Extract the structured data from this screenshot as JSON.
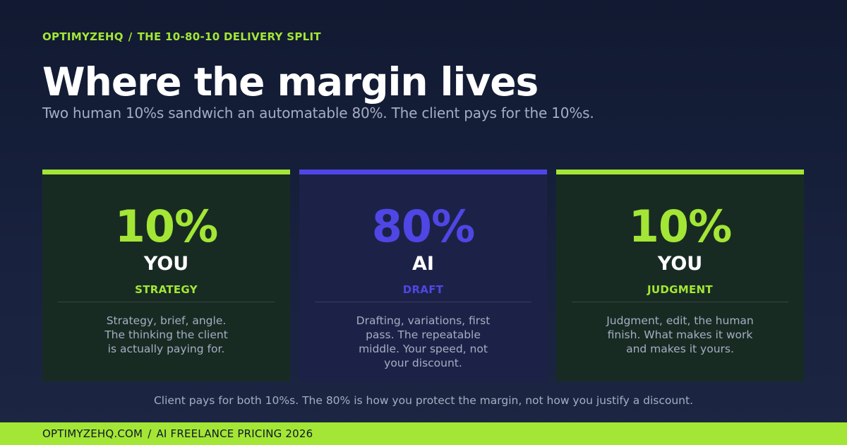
{
  "header": {
    "brand": "OPTIMYZEHQ",
    "separator": "/",
    "section": "THE 10-80-10 DELIVERY SPLIT",
    "title": "Where the margin lives",
    "subtitle": "Two human 10%s sandwich an automatable 80%. The client pays for the 10%s."
  },
  "cards": [
    {
      "percent": "10%",
      "who": "YOU",
      "role": "STRATEGY",
      "description": "Strategy, brief, angle. The thinking the client is actually paying for."
    },
    {
      "percent": "80%",
      "who": "AI",
      "role": "DRAFT",
      "description": "Drafting, variations, first pass. The repeatable middle. Your speed, not your discount."
    },
    {
      "percent": "10%",
      "who": "YOU",
      "role": "JUDGMENT",
      "description": "Judgment, edit, the human finish. What makes it work and makes it yours."
    }
  ],
  "footnote": "Client pays for both 10%s. The 80% is how you protect the margin, not how you justify a discount.",
  "footer": {
    "site": "OPTIMYZEHQ.COM",
    "separator": "/",
    "label": "AI FREELANCE PRICING 2026"
  },
  "colors": {
    "accent_green": "#a3e635",
    "accent_indigo": "#4f46e5",
    "background": "#141c35",
    "human_card": "#182b23",
    "ai_card": "#1c2247"
  }
}
